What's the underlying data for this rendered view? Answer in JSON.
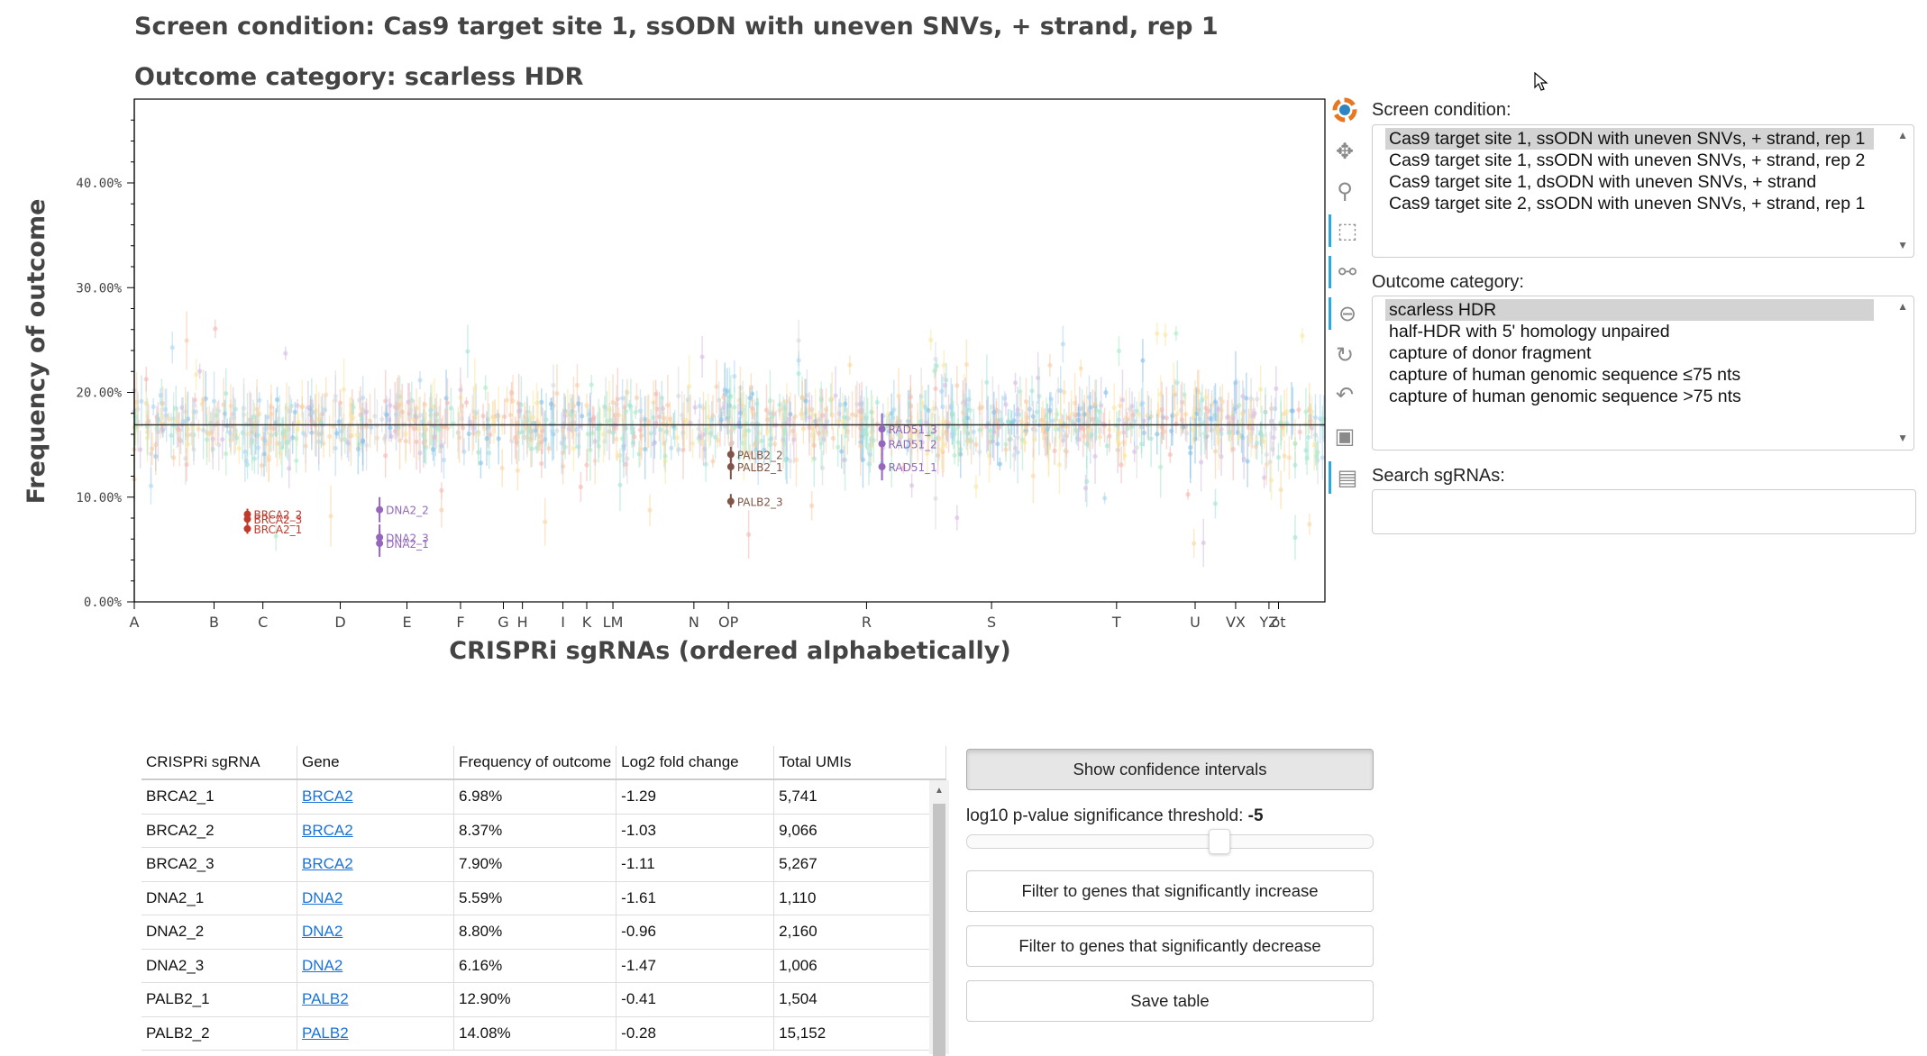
{
  "plot": {
    "title_condition": "Screen condition: Cas9 target site 1, ssODN with uneven SNVs, + strand, rep 1",
    "title_outcome": "Outcome category: scarless HDR",
    "ylabel": "Frequency of outcome",
    "xlabel": "CRISPRi sgRNAs (ordered alphabetically)"
  },
  "chart_data": {
    "type": "scatter",
    "title": "Outcome category: scarless HDR",
    "xlabel": "CRISPRi sgRNAs (ordered alphabetically)",
    "ylabel": "Frequency of outcome",
    "ylim": [
      0,
      48
    ],
    "yticks": [
      "0.00%",
      "10.00%",
      "20.00%",
      "30.00%",
      "40.00%"
    ],
    "ytick_values": [
      0,
      10,
      20,
      30,
      40
    ],
    "baseline": 16.9,
    "grid": false,
    "x_count": 1000,
    "xticks": [
      {
        "label": "A",
        "x": 0
      },
      {
        "label": "B",
        "x": 67
      },
      {
        "label": "C",
        "x": 108
      },
      {
        "label": "D",
        "x": 173
      },
      {
        "label": "E",
        "x": 229
      },
      {
        "label": "F",
        "x": 274
      },
      {
        "label": "G",
        "x": 310
      },
      {
        "label": "H",
        "x": 326
      },
      {
        "label": "I",
        "x": 360
      },
      {
        "label": "K",
        "x": 380
      },
      {
        "label": "LM",
        "x": 402
      },
      {
        "label": "N",
        "x": 470
      },
      {
        "label": "OP",
        "x": 499
      },
      {
        "label": "R",
        "x": 615
      },
      {
        "label": "S",
        "x": 720
      },
      {
        "label": "T",
        "x": 825
      },
      {
        "label": "U",
        "x": 891
      },
      {
        "label": "VX",
        "x": 925
      },
      {
        "label": "YZ",
        "x": 953
      },
      {
        "label": "ot",
        "x": 961
      }
    ],
    "highlighted": [
      {
        "gene": "BRCA2",
        "color": "#c0392b",
        "guides": [
          {
            "label": "BRCA2_1",
            "x": 95,
            "y": 6.98,
            "lo": 6.5,
            "hi": 7.5
          },
          {
            "label": "BRCA2_2",
            "x": 95,
            "y": 8.37,
            "lo": 7.9,
            "hi": 8.9
          },
          {
            "label": "BRCA2_3",
            "x": 95,
            "y": 7.9,
            "lo": 7.4,
            "hi": 8.4
          }
        ]
      },
      {
        "gene": "DNA2",
        "color": "#9467bd",
        "guides": [
          {
            "label": "DNA2_1",
            "x": 206,
            "y": 5.59,
            "lo": 4.3,
            "hi": 6.9
          },
          {
            "label": "DNA2_2",
            "x": 206,
            "y": 8.8,
            "lo": 7.6,
            "hi": 10.0
          },
          {
            "label": "DNA2_3",
            "x": 206,
            "y": 6.16,
            "lo": 4.9,
            "hi": 7.4
          }
        ]
      },
      {
        "gene": "PALB2",
        "color": "#7f5547",
        "guides": [
          {
            "label": "PALB2_1",
            "x": 501,
            "y": 12.9,
            "lo": 11.7,
            "hi": 14.1
          },
          {
            "label": "PALB2_2",
            "x": 501,
            "y": 14.08,
            "lo": 13.4,
            "hi": 14.8
          },
          {
            "label": "PALB2_3",
            "x": 501,
            "y": 9.6,
            "lo": 9.0,
            "hi": 10.3
          }
        ]
      },
      {
        "gene": "RAD51",
        "color": "#9467bd",
        "guides": [
          {
            "label": "RAD51_1",
            "x": 628,
            "y": 12.9,
            "lo": 11.6,
            "hi": 14.2
          },
          {
            "label": "RAD51_2",
            "x": 628,
            "y": 15.1,
            "lo": 14.0,
            "hi": 16.2
          },
          {
            "label": "RAD51_3",
            "x": 628,
            "y": 16.5,
            "lo": 15.5,
            "hi": 18.0
          }
        ]
      }
    ]
  },
  "toolbar": {
    "tools": [
      "bokeh-logo-icon",
      "pan-icon",
      "wheel-zoom-icon",
      "box-zoom-icon",
      "zoom-in-icon",
      "zoom-out-icon",
      "reset-icon",
      "undo-icon",
      "save-icon",
      "hover-icon"
    ]
  },
  "controls": {
    "screen_condition_label": "Screen condition:",
    "screen_conditions": [
      "Cas9 target site 1, ssODN with uneven SNVs, + strand, rep 1",
      "Cas9 target site 1, ssODN with uneven SNVs, + strand, rep 2",
      "Cas9 target site 1, dsODN with uneven SNVs, + strand",
      "Cas9 target site 2, ssODN with uneven SNVs, + strand, rep 1"
    ],
    "outcome_category_label": "Outcome category:",
    "outcome_categories": [
      "scarless HDR",
      "half-HDR with 5' homology unpaired",
      "capture of donor fragment",
      "capture of human genomic sequence ≤75 nts",
      "capture of human genomic sequence >75 nts"
    ],
    "search_label": "Search sgRNAs:",
    "search_value": ""
  },
  "table": {
    "columns": [
      "CRISPRi sgRNA",
      "Gene",
      "Frequency of outcome",
      "Log2 fold change",
      "Total UMIs"
    ],
    "rows": [
      [
        "BRCA2_1",
        "BRCA2",
        "6.98%",
        "-1.29",
        "5,741"
      ],
      [
        "BRCA2_2",
        "BRCA2",
        "8.37%",
        "-1.03",
        "9,066"
      ],
      [
        "BRCA2_3",
        "BRCA2",
        "7.90%",
        "-1.11",
        "5,267"
      ],
      [
        "DNA2_1",
        "DNA2",
        "5.59%",
        "-1.61",
        "1,110"
      ],
      [
        "DNA2_2",
        "DNA2",
        "8.80%",
        "-0.96",
        "2,160"
      ],
      [
        "DNA2_3",
        "DNA2",
        "6.16%",
        "-1.47",
        "1,006"
      ],
      [
        "PALB2_1",
        "PALB2",
        "12.90%",
        "-0.41",
        "1,504"
      ],
      [
        "PALB2_2",
        "PALB2",
        "14.08%",
        "-0.28",
        "15,152"
      ]
    ]
  },
  "buttons": {
    "show_ci": "Show confidence intervals",
    "slider_label": "log10 p-value significance threshold: ",
    "slider_value": "-5",
    "slider_fraction": 0.6,
    "filter_increase": "Filter to genes that significantly increase",
    "filter_decrease": "Filter to genes that significantly decrease",
    "save_table": "Save table"
  }
}
